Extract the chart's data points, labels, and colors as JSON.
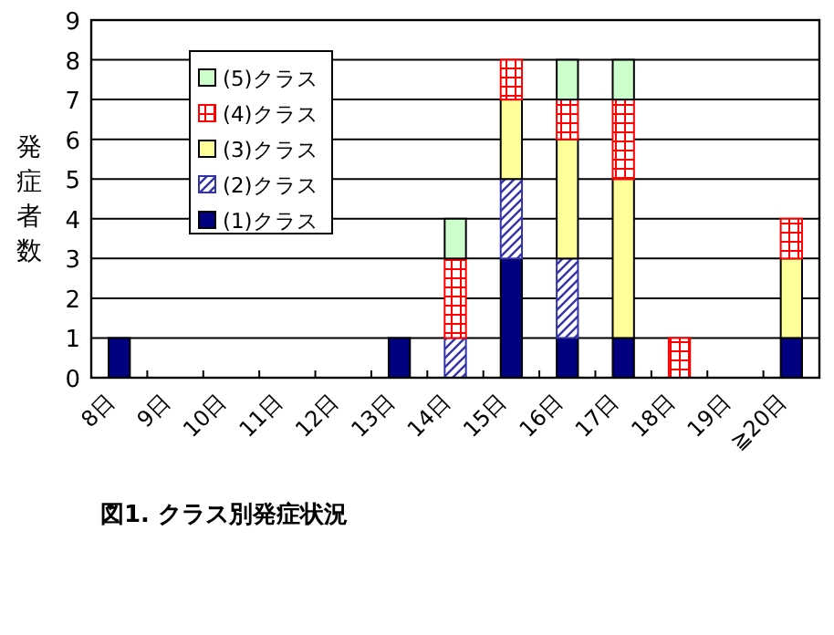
{
  "chart_data": {
    "type": "bar",
    "stacked": true,
    "title": "図1. クラス別発症状況",
    "ylabel": "発症者数",
    "categories": [
      "8日",
      "9日",
      "10日",
      "11日",
      "12日",
      "13日",
      "14日",
      "15日",
      "16日",
      "17日",
      "18日",
      "19日",
      "≧20日"
    ],
    "series": [
      {
        "name": "(1)クラス",
        "color": "#000080",
        "values": [
          1,
          0,
          0,
          0,
          0,
          1,
          0,
          3,
          1,
          1,
          0,
          0,
          1
        ]
      },
      {
        "name": "(2)クラス",
        "color": "#3333aa",
        "values": [
          0,
          0,
          0,
          0,
          0,
          0,
          1,
          2,
          2,
          0,
          0,
          0,
          0
        ]
      },
      {
        "name": "(3)クラス",
        "color": "#ffff99",
        "values": [
          0,
          0,
          0,
          0,
          0,
          0,
          0,
          2,
          3,
          4,
          0,
          0,
          2
        ]
      },
      {
        "name": "(4)クラス",
        "color": "#ff0000",
        "values": [
          0,
          0,
          0,
          0,
          0,
          0,
          2,
          1,
          1,
          2,
          1,
          0,
          1
        ]
      },
      {
        "name": "(5)クラス",
        "color": "#ccffcc",
        "values": [
          0,
          0,
          0,
          0,
          0,
          0,
          1,
          0,
          1,
          1,
          0,
          0,
          0
        ]
      }
    ],
    "ylim": [
      0,
      9
    ],
    "yticks": [
      0,
      1,
      2,
      3,
      4,
      5,
      6,
      7,
      8,
      9
    ],
    "grid": "y",
    "legend": "top left"
  }
}
